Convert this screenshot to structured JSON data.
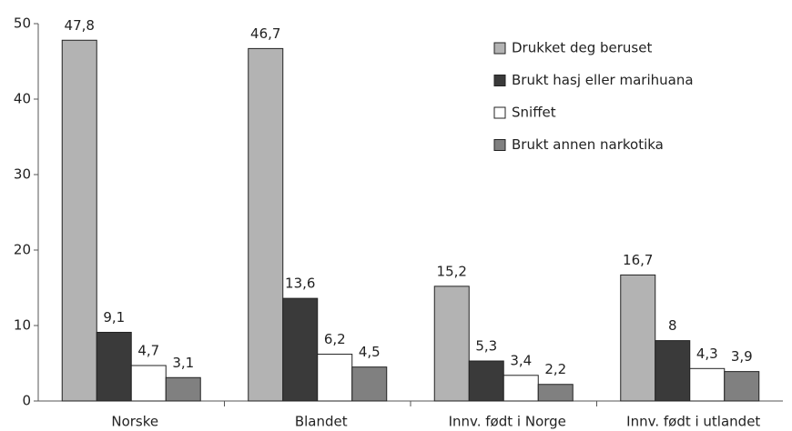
{
  "chart_data": {
    "type": "bar",
    "categories": [
      "Norske",
      "Blandet",
      "Innv. født i Norge",
      "Innv. født i utlandet"
    ],
    "series": [
      {
        "name": "Drukket deg beruset",
        "color": "#b3b3b3",
        "values": [
          47.8,
          46.7,
          15.2,
          16.7
        ],
        "value_labels": [
          "47,8",
          "46,7",
          "15,2",
          "16,7"
        ]
      },
      {
        "name": "Brukt hasj eller marihuana",
        "color": "#3a3a3a",
        "values": [
          9.1,
          13.6,
          5.3,
          8
        ],
        "value_labels": [
          "9,1",
          "13,6",
          "5,3",
          "8"
        ]
      },
      {
        "name": "Sniffet",
        "color": "#ffffff",
        "values": [
          4.7,
          6.2,
          3.4,
          4.3
        ],
        "value_labels": [
          "4,7",
          "6,2",
          "3,4",
          "4,3"
        ]
      },
      {
        "name": "Brukt annen narkotika",
        "color": "#808080",
        "values": [
          3.1,
          4.5,
          2.2,
          3.9
        ],
        "value_labels": [
          "3,1",
          "4,5",
          "2,2",
          "3,9"
        ]
      }
    ],
    "ylim": [
      0,
      50
    ],
    "yticks": [
      0,
      10,
      20,
      30,
      40,
      50
    ],
    "legend": "upper right"
  }
}
